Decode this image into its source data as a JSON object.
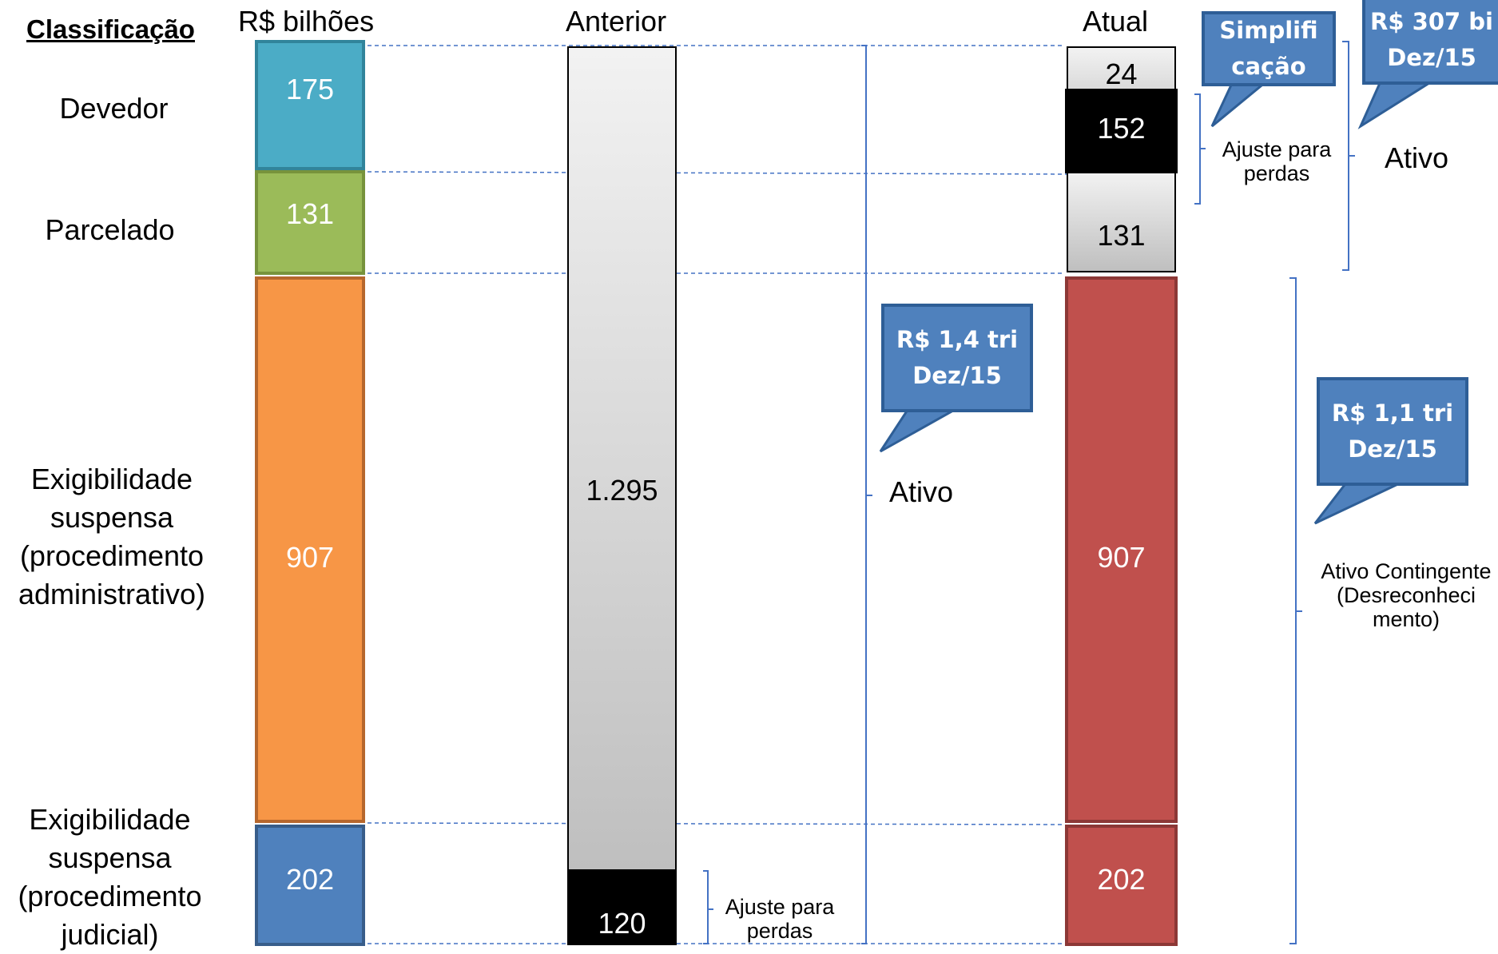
{
  "headers": {
    "classificacao": "Classificação",
    "unit": "R$ bilhões",
    "anterior": "Anterior",
    "atual": "Atual"
  },
  "categories": [
    {
      "label": "Devedor",
      "value": "175",
      "color": "#4bacc6"
    },
    {
      "label": "Parcelado",
      "value": "131",
      "color": "#9bbb59"
    },
    {
      "label": "Exigibilidade suspensa (procedimento administrativo)",
      "value": "907",
      "color": "#f79646"
    },
    {
      "label": "Exigibilidade suspensa (procedimento judicial)",
      "value": "202",
      "color": "#4f81bd"
    }
  ],
  "anterior": {
    "total": "1.295",
    "ajuste": "120",
    "ajuste_label": "Ajuste para perdas"
  },
  "atual": {
    "top": "24",
    "ajuste": "152",
    "parcelado": "131",
    "admin": "907",
    "judicial": "202",
    "ajuste_label": "Ajuste para perdas",
    "contingent_color": "#c0504d"
  },
  "labels": {
    "ativo_mid": "Ativo",
    "ativo_right": "Ativo",
    "ativo_contingente": "Ativo Contingente (Desreconheci mento)"
  },
  "callouts": {
    "simplificacao": "Simplifi cação",
    "total_anterior": "R$ 1,4 tri Dez/15",
    "ativo_atual": "R$ 307 bi Dez/15",
    "contingente": "R$ 1,1 tri Dez/15"
  }
}
